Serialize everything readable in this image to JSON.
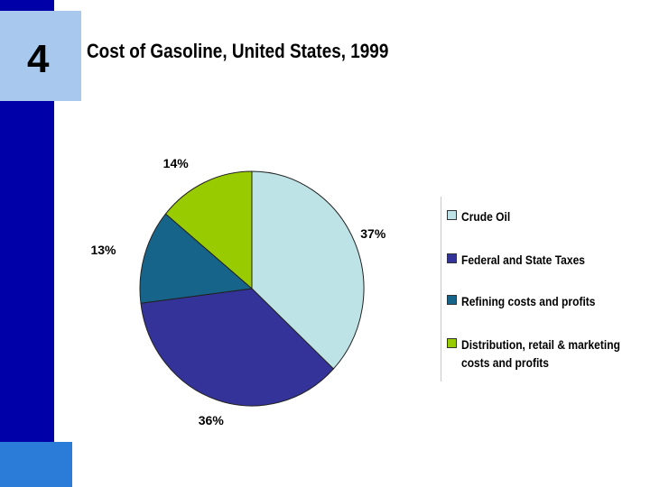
{
  "slide": {
    "number": "4"
  },
  "colors": {
    "brand_dark": "#0000a8",
    "brand_light": "#a8c8ee",
    "brand_mid": "#2a7cd8"
  },
  "chart_data": {
    "type": "pie",
    "title": "Cost of Gasoline, United States, 1999",
    "categories": [
      "Crude Oil",
      "Federal and State Taxes",
      "Refining costs and profits",
      "Distribution, retail & marketing costs and profits"
    ],
    "values": [
      37,
      36,
      13,
      14
    ],
    "labels": [
      "37%",
      "36%",
      "13%",
      "14%"
    ],
    "colors": [
      "#bde3e6",
      "#333399",
      "#17648a",
      "#99cc00"
    ],
    "legend": "right"
  }
}
